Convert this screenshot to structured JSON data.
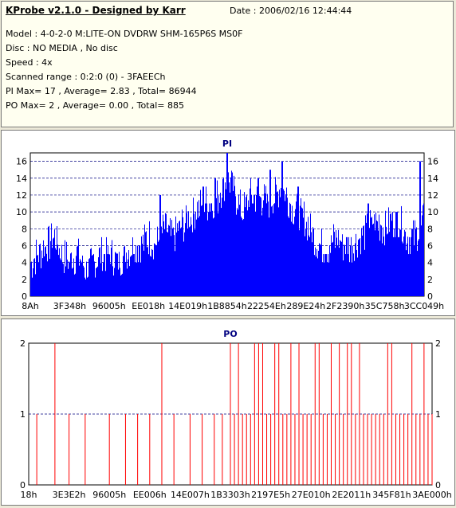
{
  "header": {
    "title": "KProbe v2.1.0 - Designed by Karr",
    "date": "Date : 2006/02/16 12:44:44",
    "lines": [
      "Model : 4-0-2-0 M:LITE-ON DVDRW SHM-165P6S MS0F",
      "Disc : NO MEDIA , No disc",
      "Speed : 4x",
      "Scanned range : 0:2:0 (0) - 3FAEECh",
      "PI Max= 17 , Average= 2.83 , Total= 86944",
      "PO Max= 2 , Average= 0.00 , Total= 885"
    ]
  },
  "colors": {
    "pi": "#0000ff",
    "po": "#ff0000",
    "title": "#000080",
    "grid": "#000080"
  },
  "chart_data": [
    {
      "type": "bar",
      "title": "PI",
      "ylim": [
        0,
        17
      ],
      "yticks": [
        0,
        2,
        4,
        6,
        8,
        10,
        12,
        14,
        16
      ],
      "xticks": [
        "8Ah",
        "3F348h",
        "96005h",
        "EE018h",
        "14E019h",
        "1B8854h",
        "22254Eh",
        "289E24h",
        "2F2390h",
        "35C758h",
        "3CC049h"
      ],
      "grid": "dashed horizontal",
      "envelope": [
        [
          0,
          5
        ],
        [
          0.02,
          6
        ],
        [
          0.04,
          7
        ],
        [
          0.06,
          8
        ],
        [
          0.08,
          6
        ],
        [
          0.1,
          5
        ],
        [
          0.12,
          6
        ],
        [
          0.14,
          4
        ],
        [
          0.16,
          5
        ],
        [
          0.18,
          6
        ],
        [
          0.2,
          6
        ],
        [
          0.22,
          5
        ],
        [
          0.24,
          6
        ],
        [
          0.26,
          7
        ],
        [
          0.28,
          7
        ],
        [
          0.3,
          8
        ],
        [
          0.32,
          7
        ],
        [
          0.34,
          9
        ],
        [
          0.36,
          8
        ],
        [
          0.38,
          9
        ],
        [
          0.4,
          10
        ],
        [
          0.42,
          11
        ],
        [
          0.44,
          12
        ],
        [
          0.46,
          12
        ],
        [
          0.48,
          13
        ],
        [
          0.5,
          15
        ],
        [
          0.52,
          13
        ],
        [
          0.54,
          11
        ],
        [
          0.56,
          13
        ],
        [
          0.58,
          13
        ],
        [
          0.6,
          12
        ],
        [
          0.62,
          13
        ],
        [
          0.64,
          14
        ],
        [
          0.66,
          12
        ],
        [
          0.68,
          11
        ],
        [
          0.7,
          10
        ],
        [
          0.72,
          8
        ],
        [
          0.74,
          7
        ],
        [
          0.76,
          7
        ],
        [
          0.78,
          8
        ],
        [
          0.8,
          7
        ],
        [
          0.82,
          7
        ],
        [
          0.84,
          8
        ],
        [
          0.86,
          9
        ],
        [
          0.88,
          10
        ],
        [
          0.9,
          9
        ],
        [
          0.92,
          10
        ],
        [
          0.94,
          10
        ],
        [
          0.96,
          8
        ],
        [
          0.98,
          8
        ],
        [
          1,
          10
        ]
      ],
      "peaks": [
        [
          0.5,
          17
        ],
        [
          0.47,
          14
        ],
        [
          0.44,
          13
        ],
        [
          0.58,
          14
        ],
        [
          0.61,
          15
        ],
        [
          0.64,
          16
        ],
        [
          0.33,
          12
        ],
        [
          0.99,
          16
        ],
        [
          0.68,
          13
        ],
        [
          0.86,
          11
        ]
      ]
    },
    {
      "type": "bar",
      "title": "PO",
      "ylim": [
        0,
        2
      ],
      "yticks": [
        0,
        1,
        2
      ],
      "xticks": [
        "18h",
        "3E3E2h",
        "96005h",
        "EE006h",
        "14E007h",
        "1B3303h",
        "2197E5h",
        "27E010h",
        "2E2011h",
        "345F81h",
        "3AE000h"
      ],
      "grid": "dashed horizontal",
      "spikes_2": [
        0.065,
        0.33,
        0.5,
        0.52,
        0.56,
        0.57,
        0.58,
        0.61,
        0.62,
        0.65,
        0.67,
        0.71,
        0.72,
        0.75,
        0.77,
        0.79,
        0.8,
        0.82,
        0.89,
        0.9,
        0.95,
        0.98
      ],
      "spikes_1": [
        0.02,
        0.1,
        0.14,
        0.2,
        0.24,
        0.27,
        0.3,
        0.36,
        0.4,
        0.43,
        0.46,
        0.48,
        0.51,
        0.53,
        0.54,
        0.55,
        0.59,
        0.6,
        0.63,
        0.64,
        0.66,
        0.68,
        0.69,
        0.7,
        0.73,
        0.74,
        0.76,
        0.78,
        0.81,
        0.83,
        0.84,
        0.85,
        0.86,
        0.87,
        0.88,
        0.91,
        0.92,
        0.93,
        0.94,
        0.96,
        0.97,
        0.99,
        1.0
      ]
    }
  ]
}
